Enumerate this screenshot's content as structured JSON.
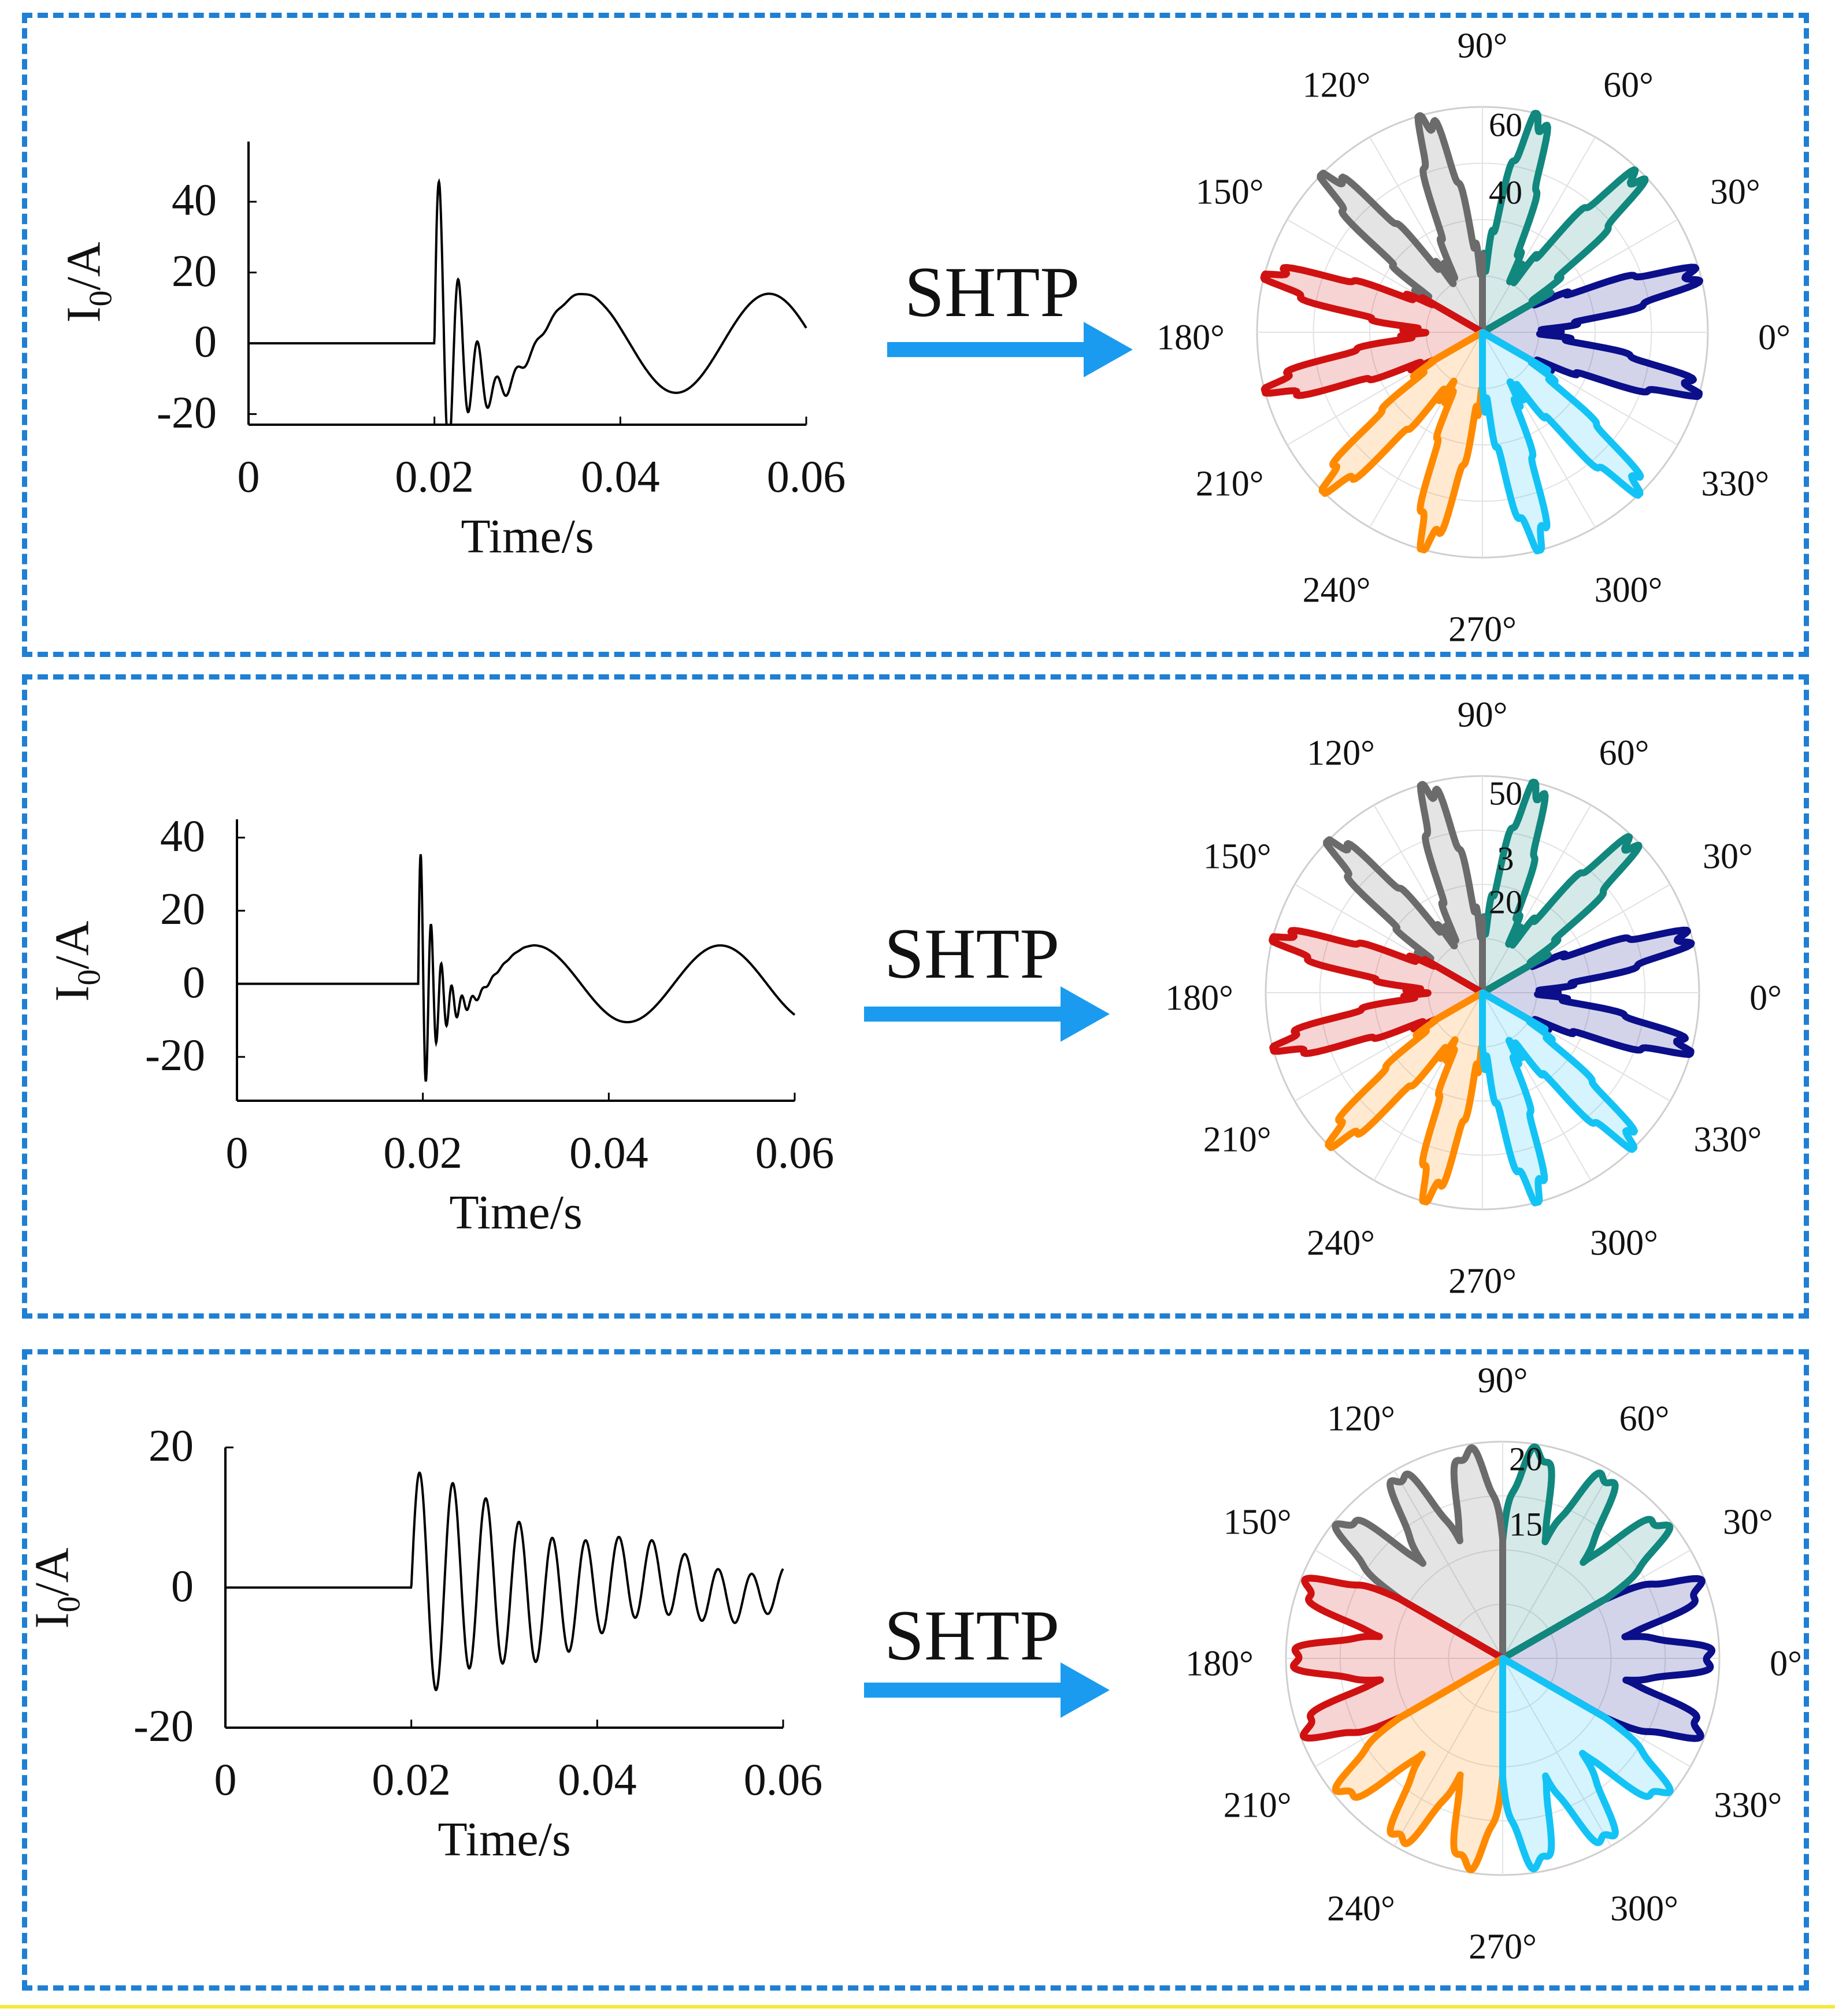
{
  "shared": {
    "arrow_label": "SHTP",
    "xlabel": "Time/s",
    "ylabel_main": "I",
    "ylabel_sub": "0",
    "ylabel_tail": "/A",
    "x_ticks": [
      "0",
      "0.02",
      "0.04",
      "0.06"
    ],
    "angle_labels": [
      "0°",
      "30°",
      "60°",
      "90°",
      "120°",
      "150°",
      "180°",
      "210°",
      "240°",
      "270°",
      "300°",
      "330°"
    ],
    "sector_colors": [
      "#0b0f8a",
      "#11877d",
      "#6b6b6b",
      "#d01111",
      "#ff8a00",
      "#14c3f5"
    ]
  },
  "chart_data": [
    {
      "type": "line",
      "xlabel": "Time/s",
      "ylabel": "I0/A",
      "x_range": [
        0,
        0.06
      ],
      "ylim": [
        -23,
        57
      ],
      "y_ticks": [
        "40",
        "20",
        "0",
        "-20"
      ],
      "signal": {
        "onset": 0.02,
        "transient": {
          "amplitude": 55,
          "freq": 480,
          "decay": 380
        },
        "fundamental": {
          "amplitude": 14,
          "freq": 50,
          "phase_offset": 0.031
        }
      },
      "polar": {
        "r_ticks": [
          "60",
          "40"
        ],
        "r_max": 70
      }
    },
    {
      "type": "line",
      "xlabel": "Time/s",
      "ylabel": "I0/A",
      "x_range": [
        0,
        0.06
      ],
      "ylim": [
        -32,
        45
      ],
      "y_ticks": [
        "40",
        "20",
        "0",
        "-20"
      ],
      "signal": {
        "onset": 0.0195,
        "transient": {
          "amplitude": 42,
          "freq": 900,
          "decay": 600
        },
        "fundamental": {
          "amplitude": 10.5,
          "freq": 50,
          "phase_offset": 0.027
        }
      },
      "polar": {
        "r_ticks": [
          "50",
          "3",
          "20"
        ],
        "r_max": 55
      }
    },
    {
      "type": "line",
      "xlabel": "Time/s",
      "ylabel": "I0/A",
      "x_range": [
        0,
        0.06
      ],
      "ylim": [
        -20,
        20
      ],
      "y_ticks": [
        "20",
        "0",
        "-20"
      ],
      "signal": {
        "onset": 0.02,
        "transient": {
          "amplitude": 17,
          "freq": 280,
          "decay": 45
        },
        "fundamental": {
          "amplitude": 1.5,
          "freq": 50,
          "phase_offset": 0.02
        }
      },
      "polar": {
        "r_ticks": [
          "20",
          "15"
        ],
        "r_max": 22
      }
    }
  ]
}
